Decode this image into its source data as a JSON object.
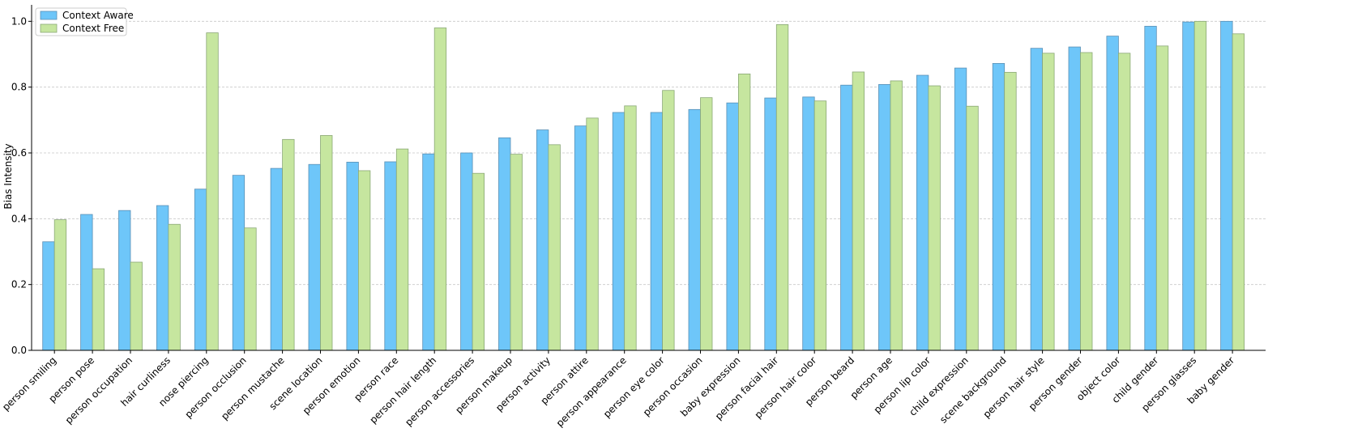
{
  "chart_data": {
    "type": "bar",
    "ylabel": "Bias Intensity",
    "xlabel": "",
    "ylim": [
      0,
      1.05
    ],
    "yticks": [
      0.0,
      0.2,
      0.4,
      0.6,
      0.8,
      1.0
    ],
    "ytick_labels": [
      "0.0",
      "0.2",
      "0.4",
      "0.6",
      "0.8",
      "1.0"
    ],
    "grid": "horizontal dashed",
    "legend_position": "top-left",
    "categories": [
      "person smiling",
      "person pose",
      "person occupation",
      "hair curliness",
      "nose piercing",
      "person occlusion",
      "person mustache",
      "scene location",
      "person emotion",
      "person race",
      "person hair length",
      "person accessories",
      "person makeup",
      "person activity",
      "person attire",
      "person appearance",
      "person eye color",
      "person occasion",
      "baby expression",
      "person facial hair",
      "person hair color",
      "person beard",
      "person age",
      "person lip color",
      "child expression",
      "scene background",
      "person hair style",
      "person gender",
      "object color",
      "child gender",
      "person glasses",
      "baby gender"
    ],
    "series": [
      {
        "name": "Context Aware",
        "color": "#6ec6f9",
        "edge": "#5a8fb5",
        "values": [
          0.33,
          0.413,
          0.425,
          0.44,
          0.49,
          0.532,
          0.553,
          0.565,
          0.572,
          0.573,
          0.597,
          0.6,
          0.646,
          0.67,
          0.682,
          0.723,
          0.723,
          0.732,
          0.752,
          0.767,
          0.77,
          0.806,
          0.808,
          0.836,
          0.858,
          0.872,
          0.918,
          0.922,
          0.955,
          0.985,
          0.998,
          1.0
        ]
      },
      {
        "name": "Context Free",
        "color": "#c6e69f",
        "edge": "#8ba877",
        "values": [
          0.397,
          0.248,
          0.268,
          0.383,
          0.965,
          0.372,
          0.641,
          0.653,
          0.546,
          0.612,
          0.98,
          0.538,
          0.596,
          0.625,
          0.706,
          0.743,
          0.79,
          0.768,
          0.84,
          0.99,
          0.758,
          0.846,
          0.819,
          0.804,
          0.742,
          0.845,
          0.903,
          0.905,
          0.903,
          0.925,
          1.0,
          0.962
        ]
      }
    ]
  }
}
